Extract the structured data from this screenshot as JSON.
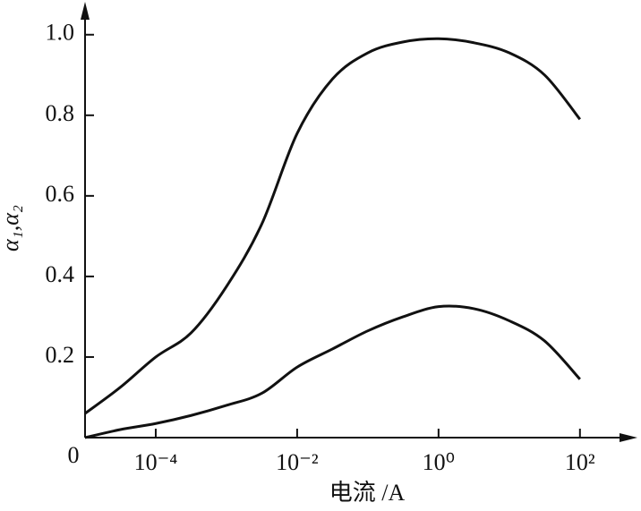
{
  "chart_data": {
    "type": "line",
    "x_label": "电流 /A",
    "y_label": "α₁,α₂",
    "log_x": true,
    "x": [
      1e-05,
      3.16e-05,
      0.0001,
      0.000316,
      0.001,
      0.00316,
      0.01,
      0.0316,
      0.1,
      0.316,
      1,
      3.16,
      10,
      31.6,
      100
    ],
    "series": [
      {
        "color": "#111111",
        "values": [
          0.06,
          0.125,
          0.2,
          0.26,
          0.375,
          0.53,
          0.755,
          0.89,
          0.955,
          0.982,
          0.99,
          0.98,
          0.955,
          0.9,
          0.79
        ]
      },
      {
        "color": "#111111",
        "values": [
          0.0,
          0.02,
          0.035,
          0.055,
          0.08,
          0.11,
          0.175,
          0.22,
          0.265,
          0.3,
          0.325,
          0.32,
          0.29,
          0.24,
          0.145
        ]
      }
    ],
    "xlim": [
      1e-05,
      500
    ],
    "xticks": [
      {
        "value": 0.0001,
        "label": "10⁻⁴"
      },
      {
        "value": 0.01,
        "label": "10⁻²"
      },
      {
        "value": 1,
        "label": "10⁰"
      },
      {
        "value": 100,
        "label": "10²"
      }
    ],
    "ylim": [
      0,
      1.075
    ],
    "yticks": [
      0,
      0.2,
      0.4,
      0.6,
      0.8,
      {
        "value": 1,
        "label": "1.0"
      }
    ]
  }
}
